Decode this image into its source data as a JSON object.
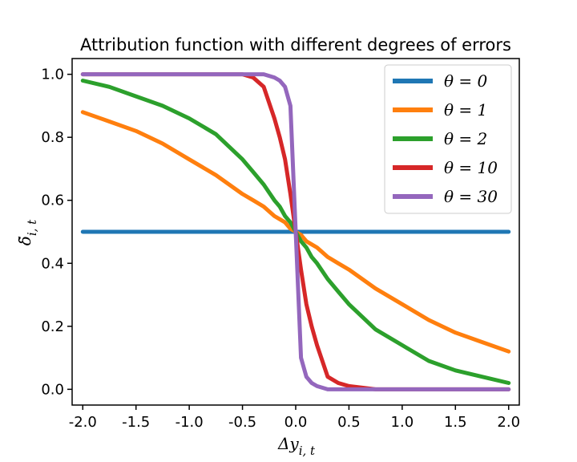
{
  "chart_data": {
    "type": "line",
    "title": "Attribution function with different degrees of errors",
    "xlabel": "Δy",
    "xlabel_sub": "i, t",
    "ylabel": "δ̃",
    "ylabel_sub": "i, t",
    "xlim": [
      -2.1,
      2.1
    ],
    "ylim": [
      -0.05,
      1.05
    ],
    "xticks": [
      -2.0,
      -1.5,
      -1.0,
      -0.5,
      0.0,
      0.5,
      1.0,
      1.5,
      2.0
    ],
    "xtick_labels": [
      "-2.0",
      "-1.5",
      "-1.0",
      "-0.5",
      "0.0",
      "0.5",
      "1.0",
      "1.5",
      "2.0"
    ],
    "yticks": [
      0.0,
      0.2,
      0.4,
      0.6,
      0.8,
      1.0
    ],
    "ytick_labels": [
      "0.0",
      "0.2",
      "0.4",
      "0.6",
      "0.8",
      "1.0"
    ],
    "grid": false,
    "legend_position": "top-right",
    "x": [
      -2.0,
      -1.75,
      -1.5,
      -1.25,
      -1.0,
      -0.75,
      -0.5,
      -0.4,
      -0.3,
      -0.2,
      -0.15,
      -0.1,
      -0.05,
      0.0,
      0.05,
      0.1,
      0.15,
      0.2,
      0.3,
      0.4,
      0.5,
      0.75,
      1.0,
      1.25,
      1.5,
      1.75,
      2.0
    ],
    "series": [
      {
        "name": "θ = 0",
        "color": "#1f77b4",
        "values": [
          0.5,
          0.5,
          0.5,
          0.5,
          0.5,
          0.5,
          0.5,
          0.5,
          0.5,
          0.5,
          0.5,
          0.5,
          0.5,
          0.5,
          0.5,
          0.5,
          0.5,
          0.5,
          0.5,
          0.5,
          0.5,
          0.5,
          0.5,
          0.5,
          0.5,
          0.5,
          0.5
        ]
      },
      {
        "name": "θ = 1",
        "color": "#ff7f0e",
        "values": [
          0.88,
          0.85,
          0.82,
          0.78,
          0.73,
          0.68,
          0.62,
          0.6,
          0.58,
          0.55,
          0.54,
          0.53,
          0.51,
          0.5,
          0.49,
          0.47,
          0.46,
          0.45,
          0.42,
          0.4,
          0.38,
          0.32,
          0.27,
          0.22,
          0.18,
          0.15,
          0.12
        ]
      },
      {
        "name": "θ = 2",
        "color": "#2ca02c",
        "values": [
          0.98,
          0.96,
          0.93,
          0.9,
          0.86,
          0.81,
          0.73,
          0.69,
          0.65,
          0.6,
          0.58,
          0.55,
          0.53,
          0.5,
          0.47,
          0.45,
          0.42,
          0.4,
          0.35,
          0.31,
          0.27,
          0.19,
          0.14,
          0.09,
          0.06,
          0.04,
          0.02
        ]
      },
      {
        "name": "θ = 10",
        "color": "#d62728",
        "values": [
          1.0,
          1.0,
          1.0,
          1.0,
          1.0,
          1.0,
          1.0,
          0.99,
          0.96,
          0.86,
          0.8,
          0.73,
          0.62,
          0.5,
          0.38,
          0.27,
          0.2,
          0.14,
          0.04,
          0.02,
          0.01,
          0.0,
          0.0,
          0.0,
          0.0,
          0.0,
          0.0
        ]
      },
      {
        "name": "θ = 30",
        "color": "#9467bd",
        "values": [
          1.0,
          1.0,
          1.0,
          1.0,
          1.0,
          1.0,
          1.0,
          1.0,
          1.0,
          0.99,
          0.98,
          0.96,
          0.9,
          0.5,
          0.1,
          0.04,
          0.02,
          0.01,
          0.0,
          0.0,
          0.0,
          0.0,
          0.0,
          0.0,
          0.0,
          0.0,
          0.0
        ]
      }
    ]
  }
}
